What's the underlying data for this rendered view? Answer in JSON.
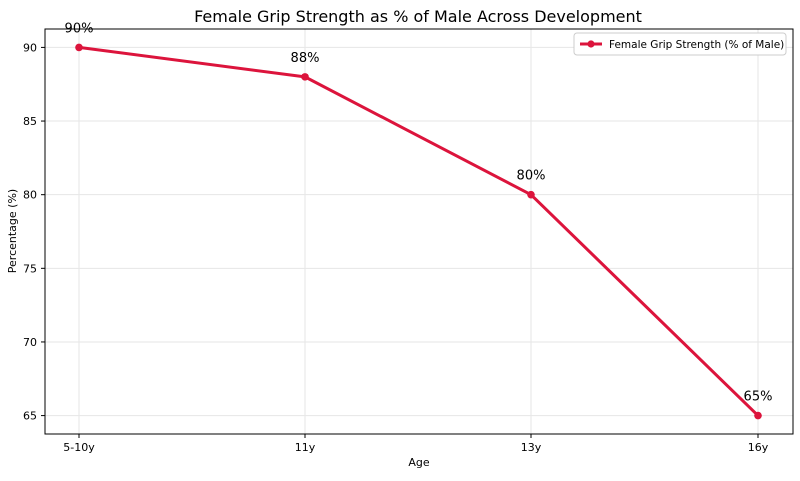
{
  "chart_data": {
    "type": "line",
    "title": "Female Grip Strength as % of Male Across Development",
    "xlabel": "Age",
    "ylabel": "Percentage (%)",
    "categories": [
      "5-10y",
      "11y",
      "13y",
      "16y"
    ],
    "series": [
      {
        "name": "Female Grip Strength (% of Male)",
        "values": [
          90,
          88,
          80,
          65
        ],
        "color": "#dc143c",
        "marker": "circle"
      }
    ],
    "data_labels": [
      "90%",
      "88%",
      "80%",
      "65%"
    ],
    "ylim": [
      63.75,
      91.25
    ],
    "yticks": [
      65,
      70,
      75,
      80,
      85,
      90
    ],
    "grid": true,
    "legend_position": "top-right"
  }
}
